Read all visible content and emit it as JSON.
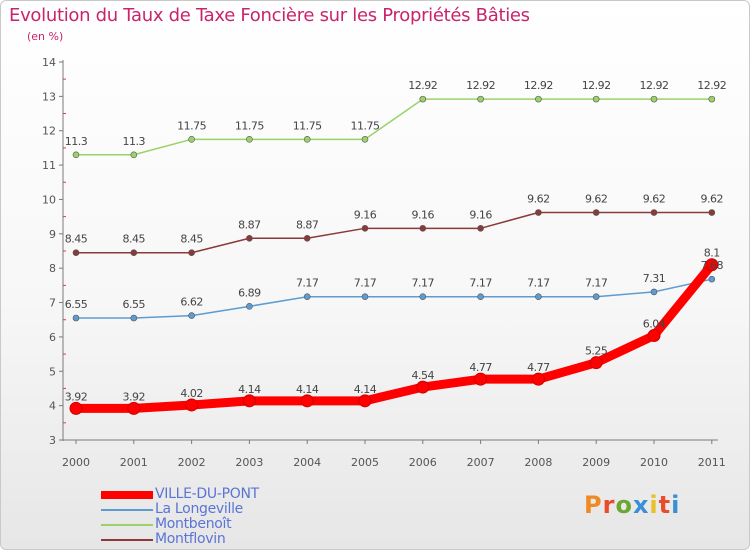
{
  "page": {
    "title": "Evolution du Taux de Taxe Foncière sur les Propriétés Bâties",
    "subtitle": "(en %)"
  },
  "logo": {
    "text": "Proxiti",
    "colors": [
      "#f08a24",
      "#e84d2a",
      "#6aa833",
      "#3a8fd6",
      "#e8c02a",
      "#e84d2a",
      "#3a8fd6"
    ]
  },
  "chart_data": {
    "type": "line",
    "title": "Evolution du Taux de Taxe Foncière sur les Propriétés Bâties",
    "ylabel": "(en %)",
    "xlabel": "",
    "x": [
      "2000",
      "2001",
      "2002",
      "2003",
      "2004",
      "2005",
      "2006",
      "2007",
      "2008",
      "2009",
      "2010",
      "2011"
    ],
    "ylim": [
      3,
      14
    ],
    "yticks": [
      "3",
      "4",
      "5",
      "6",
      "7",
      "8",
      "9",
      "10",
      "11",
      "12",
      "13",
      "14"
    ],
    "grid": false,
    "legend": "bottom-left",
    "series": [
      {
        "name": "VILLE-DU-PONT",
        "color": "#ff0000",
        "values": [
          3.92,
          3.92,
          4.02,
          4.14,
          4.14,
          4.14,
          4.54,
          4.77,
          4.77,
          5.25,
          6.04,
          8.1
        ],
        "labels": [
          "3.92",
          "3.92",
          "4.02",
          "4.14",
          "4.14",
          "4.14",
          "4.54",
          "4.77",
          "4.77",
          "5.25",
          "6.04",
          "8.1"
        ]
      },
      {
        "name": "La Longeville",
        "color": "#5e9bd0",
        "values": [
          6.55,
          6.55,
          6.62,
          6.89,
          7.17,
          7.17,
          7.17,
          7.17,
          7.17,
          7.17,
          7.31,
          7.68
        ],
        "labels": [
          "6.55",
          "6.55",
          "6.62",
          "6.89",
          "7.17",
          "7.17",
          "7.17",
          "7.17",
          "7.17",
          "7.17",
          "7.31",
          "7.68"
        ]
      },
      {
        "name": "Montbenoît",
        "color": "#9ad26a",
        "values": [
          11.3,
          11.3,
          11.75,
          11.75,
          11.75,
          11.75,
          12.92,
          12.92,
          12.92,
          12.92,
          12.92,
          12.92
        ],
        "labels": [
          "11.3",
          "11.3",
          "11.75",
          "11.75",
          "11.75",
          "11.75",
          "12.92",
          "12.92",
          "12.92",
          "12.92",
          "12.92",
          "12.92"
        ]
      },
      {
        "name": "Montflovin",
        "color": "#8b3a3a",
        "values": [
          8.45,
          8.45,
          8.45,
          8.87,
          8.87,
          9.16,
          9.16,
          9.16,
          9.62,
          9.62,
          9.62,
          9.62
        ],
        "labels": [
          "8.45",
          "8.45",
          "8.45",
          "8.87",
          "8.87",
          "9.16",
          "9.16",
          "9.16",
          "9.62",
          "9.62",
          "9.62",
          "9.62"
        ]
      }
    ]
  }
}
